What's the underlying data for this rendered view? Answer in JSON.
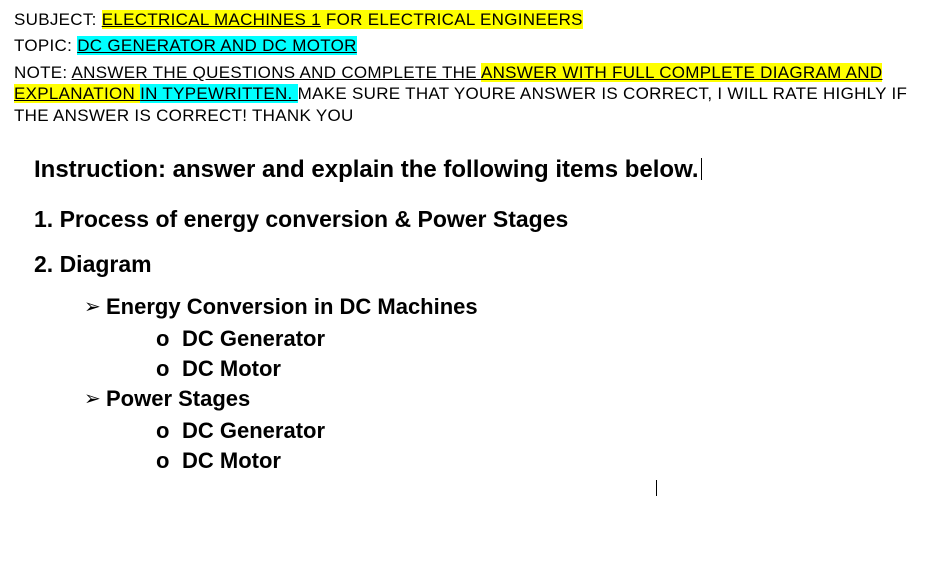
{
  "header": {
    "subject_label": "SUBJECT: ",
    "subject_value_pre": "ELECTRICAL MACHINES 1",
    "subject_value_post": " FOR ELECTRICAL ENGINEERS",
    "topic_label": "TOPIC: ",
    "topic_value": "DC GENERATOR AND DC MOTOR",
    "note_label": "NOTE: ",
    "note_seg1": "ANSWER THE QUESTIONS AND COMPLETE THE ",
    "note_seg2": "ANSWER WITH FULL COMPLETE DIAGRAM AND EXPLANATION ",
    "note_seg3": "IN TYPEWRITTEN. ",
    "note_seg4": "MAKE SURE THAT YOURE ANSWER IS CORRECT, I WILL RATE HIGHLY IF THE ANSWER IS CORRECT! THANK YOU"
  },
  "body": {
    "instruction": "Instruction: answer and explain the following items below.",
    "item1": "1. Process of energy conversion & Power Stages",
    "item2": "2.  Diagram",
    "sections": [
      {
        "title": "Energy Conversion in DC Machines",
        "subs": [
          "DC Generator",
          "DC Motor"
        ]
      },
      {
        "title": "Power Stages",
        "subs": [
          "DC Generator",
          "DC Motor"
        ]
      }
    ],
    "bullet_o": "o",
    "bullet_arrow": "➢"
  },
  "colors": {
    "highlight_yellow": "#ffff00",
    "highlight_cyan": "#00ffff",
    "text": "#000000",
    "background": "#ffffff"
  }
}
